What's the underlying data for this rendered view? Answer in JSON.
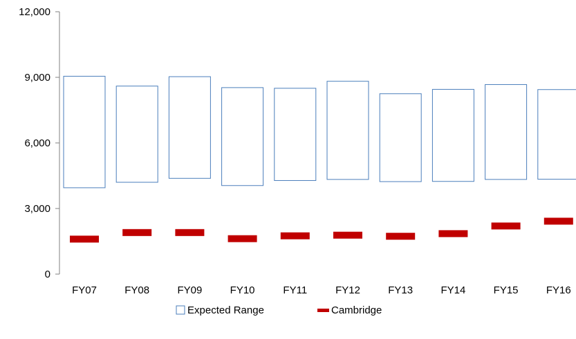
{
  "chart_data": {
    "type": "bar",
    "categories": [
      "FY07",
      "FY08",
      "FY09",
      "FY10",
      "FY11",
      "FY12",
      "FY13",
      "FY14",
      "FY15",
      "FY16"
    ],
    "series": [
      {
        "name": "Expected Range",
        "kind": "floating-range",
        "low": [
          3950,
          4200,
          4380,
          4050,
          4280,
          4330,
          4230,
          4240,
          4330,
          4340
        ],
        "high": [
          9050,
          8600,
          9030,
          8530,
          8500,
          8820,
          8250,
          8450,
          8670,
          8440
        ],
        "color": "#4a7ebb"
      },
      {
        "name": "Cambridge",
        "kind": "marker",
        "values": [
          1600,
          1900,
          1900,
          1620,
          1750,
          1780,
          1730,
          1850,
          2200,
          2420
        ],
        "color": "#c00000"
      }
    ],
    "ylim": [
      0,
      12000
    ],
    "yticks": [
      0,
      3000,
      6000,
      9000,
      12000
    ],
    "ytick_labels": [
      "0",
      "3,000",
      "6,000",
      "9,000",
      "12,000"
    ],
    "title": "",
    "xlabel": "",
    "ylabel": "",
    "grid": false,
    "legend": "bottom"
  }
}
